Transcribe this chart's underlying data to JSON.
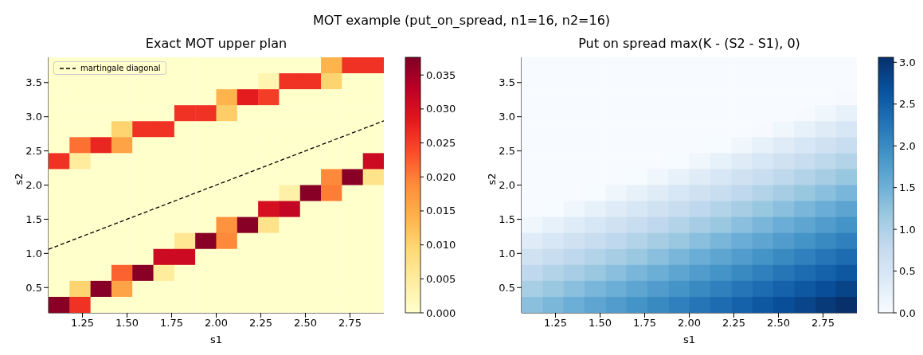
{
  "chart_data": [
    {
      "type": "heatmap",
      "title": "Exact MOT upper plan",
      "xlabel": "s1",
      "ylabel": "s2",
      "annotations": [
        "MOT example (put_on_spread, n1=16, n2=16)"
      ],
      "xlim": [
        1.06,
        2.94
      ],
      "ylim": [
        0.13,
        3.87
      ],
      "xticks": [
        {
          "value": 1.25,
          "label": "1.25"
        },
        {
          "value": 1.5,
          "label": "1.50"
        },
        {
          "value": 1.75,
          "label": "1.75"
        },
        {
          "value": 2,
          "label": "2.00"
        },
        {
          "value": 2.25,
          "label": "2.25"
        },
        {
          "value": 2.5,
          "label": "2.50"
        },
        {
          "value": 2.75,
          "label": "2.75"
        }
      ],
      "yticks": [
        0.5,
        {
          "value": 1,
          "label": "1.0"
        },
        1.5,
        {
          "value": 2,
          "label": "2.0"
        },
        2.5,
        {
          "value": 3,
          "label": "3.0"
        },
        3.5
      ],
      "clim": [
        0,
        0.0376
      ],
      "cticks": [
        {
          "value": 0,
          "label": "0.000"
        },
        {
          "value": 0.005,
          "label": "0.005"
        },
        {
          "value": 0.01,
          "label": "0.010"
        },
        {
          "value": 0.015,
          "label": "0.015"
        },
        {
          "value": 0.02,
          "label": "0.020"
        },
        {
          "value": 0.025,
          "label": "0.025"
        },
        {
          "value": 0.03,
          "label": "0.030"
        },
        {
          "value": 0.035,
          "label": "0.035"
        }
      ],
      "colors": [
        "#ffffcc",
        "#ffeda0",
        "#fed976",
        "#feb24c",
        "#fd8d3c",
        "#fc4e2a",
        "#e31a1c",
        "#bd0026",
        "#800026"
      ],
      "legend": "top left",
      "cells": [
        [
          0,
          0,
          0,
          0,
          0,
          0,
          0,
          0,
          0,
          0,
          0,
          0,
          0,
          0.014,
          0.026,
          0.026
        ],
        [
          0,
          0,
          0,
          0,
          0,
          0,
          0,
          0,
          0,
          0,
          0.003,
          0.026,
          0.026,
          0.01,
          0,
          0
        ],
        [
          0,
          0,
          0,
          0,
          0,
          0,
          0,
          0,
          0.014,
          0.028,
          0.025,
          0,
          0,
          0,
          0,
          0
        ],
        [
          0,
          0,
          0,
          0,
          0,
          0,
          0.026,
          0.026,
          0.011,
          0,
          0,
          0,
          0,
          0,
          0,
          0
        ],
        [
          0,
          0,
          0,
          0.01,
          0.026,
          0.026,
          0,
          0,
          0,
          0,
          0,
          0,
          0,
          0,
          0,
          0
        ],
        [
          0,
          0.021,
          0.027,
          0.016,
          0,
          0,
          0,
          0,
          0,
          0,
          0,
          0,
          0,
          0,
          0,
          0
        ],
        [
          0.026,
          0.005,
          0,
          0,
          0,
          0,
          0,
          0,
          0,
          0,
          0,
          0,
          0,
          0,
          0,
          0.031
        ],
        [
          0,
          0,
          0,
          0,
          0,
          0,
          0,
          0,
          0,
          0,
          0,
          0,
          0,
          0.019,
          0.037,
          0.007
        ],
        [
          0,
          0,
          0,
          0,
          0,
          0,
          0,
          0,
          0,
          0,
          0,
          0.004,
          0.037,
          0.02,
          0,
          0
        ],
        [
          0,
          0,
          0,
          0,
          0,
          0,
          0,
          0,
          0,
          0,
          0.03,
          0.032,
          0,
          0,
          0,
          0
        ],
        [
          0,
          0,
          0,
          0,
          0,
          0,
          0,
          0,
          0.018,
          0.037,
          0.007,
          0,
          0,
          0,
          0,
          0
        ],
        [
          0,
          0,
          0,
          0,
          0,
          0,
          0.006,
          0.037,
          0.019,
          0,
          0,
          0,
          0,
          0,
          0,
          0
        ],
        [
          0,
          0,
          0,
          0,
          0,
          0.031,
          0.031,
          0,
          0,
          0,
          0,
          0,
          0,
          0,
          0,
          0
        ],
        [
          0,
          0,
          0,
          0.022,
          0.037,
          0.005,
          0,
          0,
          0,
          0,
          0,
          0,
          0,
          0,
          0,
          0
        ],
        [
          0,
          0.01,
          0.037,
          0.016,
          0,
          0,
          0,
          0,
          0,
          0,
          0,
          0,
          0,
          0,
          0,
          0
        ],
        [
          0.037,
          0.026,
          0,
          0,
          0,
          0,
          0,
          0,
          0,
          0,
          0,
          0,
          0,
          0,
          0,
          0
        ]
      ],
      "series": [
        {
          "type": "line",
          "name": "martingale diagonal",
          "color": "#000000",
          "line_style": "dashed",
          "x": [
            1.06,
            2.94
          ],
          "values": [
            1.06,
            2.94
          ]
        }
      ]
    },
    {
      "type": "heatmap",
      "title": "Put on spread max(K - (S2 - S1), 0)",
      "xlabel": "s1",
      "ylabel": "s2",
      "xlim": [
        1.06,
        2.94
      ],
      "ylim": [
        0.13,
        3.87
      ],
      "xticks": [
        {
          "value": 1.25,
          "label": "1.25"
        },
        {
          "value": 1.5,
          "label": "1.50"
        },
        {
          "value": 1.75,
          "label": "1.75"
        },
        {
          "value": 2,
          "label": "2.00"
        },
        {
          "value": 2.25,
          "label": "2.25"
        },
        {
          "value": 2.5,
          "label": "2.50"
        },
        {
          "value": 2.75,
          "label": "2.75"
        }
      ],
      "yticks": [
        0.5,
        {
          "value": 1,
          "label": "1.0"
        },
        1.5,
        {
          "value": 2,
          "label": "2.0"
        },
        2.5,
        {
          "value": 3,
          "label": "3.0"
        },
        3.5
      ],
      "clim": [
        0,
        3.06
      ],
      "cticks": [
        {
          "value": 0,
          "label": "0.0"
        },
        0.5,
        {
          "value": 1,
          "label": "1.0"
        },
        1.5,
        {
          "value": 2,
          "label": "2.0"
        },
        2.5,
        {
          "value": 3,
          "label": "3.0"
        }
      ],
      "colors": [
        "#f7fbff",
        "#deebf7",
        "#c6dbef",
        "#9ecae1",
        "#6baed6",
        "#4292c6",
        "#2171b5",
        "#08519c",
        "#08306b"
      ],
      "cells": [
        [
          0,
          0,
          0,
          0,
          0,
          0,
          0,
          0,
          0,
          0,
          0,
          0,
          0,
          0,
          0,
          0
        ],
        [
          0,
          0,
          0,
          0,
          0,
          0,
          0,
          0,
          0,
          0,
          0,
          0,
          0,
          0,
          0,
          0
        ],
        [
          0,
          0,
          0,
          0,
          0,
          0,
          0,
          0,
          0,
          0,
          0,
          0,
          0,
          0,
          0,
          0.02
        ],
        [
          0,
          0,
          0,
          0,
          0,
          0,
          0,
          0,
          0,
          0,
          0,
          0,
          0,
          0.02,
          0.13,
          0.25
        ],
        [
          0,
          0,
          0,
          0,
          0,
          0,
          0,
          0,
          0,
          0,
          0,
          0.02,
          0.13,
          0.25,
          0.37,
          0.49
        ],
        [
          0,
          0,
          0,
          0,
          0,
          0,
          0,
          0,
          0,
          0.01,
          0.13,
          0.25,
          0.37,
          0.48,
          0.6,
          0.72
        ],
        [
          0,
          0,
          0,
          0,
          0,
          0,
          0,
          0.01,
          0.13,
          0.25,
          0.37,
          0.48,
          0.6,
          0.72,
          0.84,
          0.95
        ],
        [
          0,
          0,
          0,
          0,
          0,
          0.01,
          0.13,
          0.25,
          0.37,
          0.48,
          0.6,
          0.72,
          0.84,
          0.95,
          1.07,
          1.19
        ],
        [
          0,
          0,
          0,
          0.01,
          0.13,
          0.25,
          0.36,
          0.48,
          0.6,
          0.72,
          0.83,
          0.95,
          1.07,
          1.19,
          1.3,
          1.42
        ],
        [
          0,
          0.01,
          0.13,
          0.25,
          0.36,
          0.48,
          0.6,
          0.72,
          0.83,
          0.95,
          1.07,
          1.19,
          1.3,
          1.42,
          1.54,
          1.66
        ],
        [
          0.13,
          0.24,
          0.36,
          0.48,
          0.6,
          0.71,
          0.83,
          0.95,
          1.07,
          1.18,
          1.3,
          1.42,
          1.54,
          1.65,
          1.77,
          1.89
        ],
        [
          0.36,
          0.48,
          0.6,
          0.71,
          0.83,
          0.95,
          1.07,
          1.18,
          1.3,
          1.42,
          1.54,
          1.65,
          1.77,
          1.89,
          2.01,
          2.12
        ],
        [
          0.6,
          0.71,
          0.83,
          0.95,
          1.07,
          1.18,
          1.3,
          1.42,
          1.54,
          1.65,
          1.77,
          1.89,
          2.01,
          2.12,
          2.24,
          2.36
        ],
        [
          0.83,
          0.95,
          1.06,
          1.18,
          1.3,
          1.42,
          1.53,
          1.65,
          1.77,
          1.89,
          2.0,
          2.12,
          2.24,
          2.36,
          2.47,
          2.59
        ],
        [
          1.06,
          1.18,
          1.3,
          1.42,
          1.53,
          1.65,
          1.77,
          1.89,
          2.0,
          2.12,
          2.24,
          2.36,
          2.47,
          2.59,
          2.71,
          2.83
        ],
        [
          1.3,
          1.41,
          1.53,
          1.65,
          1.77,
          1.88,
          2.0,
          2.12,
          2.24,
          2.35,
          2.47,
          2.59,
          2.71,
          2.82,
          2.94,
          3.06
        ]
      ]
    }
  ]
}
